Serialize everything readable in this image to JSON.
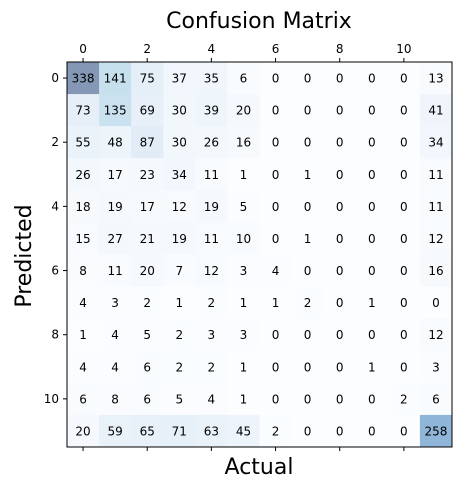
{
  "chart_data": {
    "type": "heatmap",
    "title": "Confusion Matrix",
    "xlabel": "Actual",
    "ylabel": "Predicted",
    "x_ticks_position": "top",
    "x_ticks": [
      0,
      2,
      4,
      6,
      8,
      10
    ],
    "y_ticks": [
      0,
      2,
      4,
      6,
      8,
      10
    ],
    "colormap": "Blues",
    "color_alpha": 0.5,
    "matrix": [
      [
        338,
        141,
        75,
        37,
        35,
        6,
        0,
        0,
        0,
        0,
        0,
        13
      ],
      [
        73,
        135,
        69,
        30,
        39,
        20,
        0,
        0,
        0,
        0,
        0,
        41
      ],
      [
        55,
        48,
        87,
        30,
        26,
        16,
        0,
        0,
        0,
        0,
        0,
        34
      ],
      [
        26,
        17,
        23,
        34,
        11,
        1,
        0,
        1,
        0,
        0,
        0,
        11
      ],
      [
        18,
        19,
        17,
        12,
        19,
        5,
        0,
        0,
        0,
        0,
        0,
        11
      ],
      [
        15,
        27,
        21,
        19,
        11,
        10,
        0,
        1,
        0,
        0,
        0,
        12
      ],
      [
        8,
        11,
        20,
        7,
        12,
        3,
        4,
        0,
        0,
        0,
        0,
        16
      ],
      [
        4,
        3,
        2,
        1,
        2,
        1,
        1,
        2,
        0,
        1,
        0,
        0
      ],
      [
        1,
        4,
        5,
        2,
        3,
        3,
        0,
        0,
        0,
        0,
        0,
        12
      ],
      [
        4,
        4,
        6,
        2,
        2,
        1,
        0,
        0,
        0,
        1,
        0,
        3
      ],
      [
        6,
        8,
        6,
        5,
        4,
        1,
        0,
        0,
        0,
        0,
        2,
        6
      ],
      [
        20,
        59,
        65,
        71,
        63,
        45,
        2,
        0,
        0,
        0,
        0,
        258
      ]
    ]
  }
}
